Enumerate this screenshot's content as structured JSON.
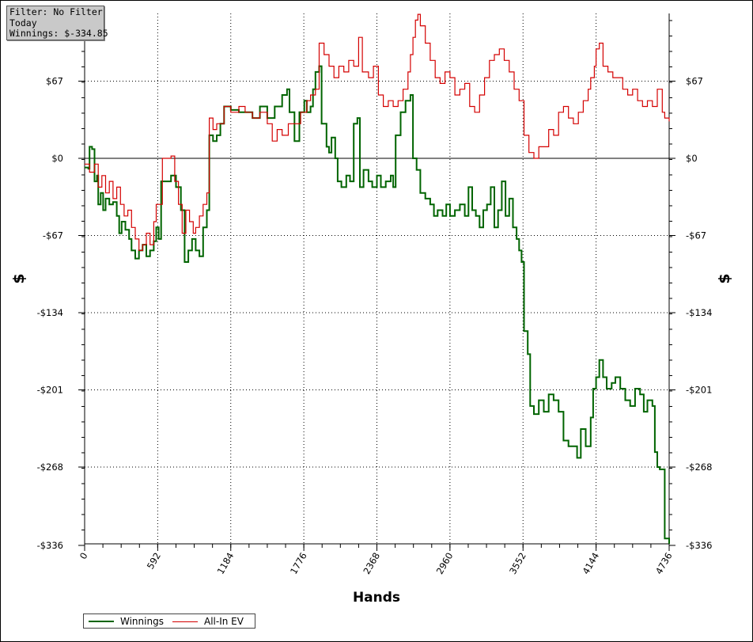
{
  "info": {
    "filter": "Filter: No Filter",
    "period": "Today",
    "winnings": "Winnings: $-334.85"
  },
  "colors": {
    "winnings": "#006400",
    "allin_ev": "#d40000",
    "grid": "#000000"
  },
  "chart_data": {
    "type": "line",
    "xlabel": "Hands",
    "ylabel": "$",
    "xlim": [
      0,
      4736
    ],
    "ylim": [
      -336,
      126
    ],
    "x_ticks": [
      0,
      592,
      1184,
      1776,
      2368,
      2960,
      3552,
      4144,
      4736
    ],
    "x_tick_labels": [
      "0",
      "592",
      "1184",
      "1776",
      "2368",
      "2960",
      "3552",
      "4144",
      "4736"
    ],
    "y_ticks": [
      67,
      0,
      -67,
      -134,
      -201,
      -268,
      -336
    ],
    "y_tick_labels": [
      "$67",
      "$0",
      "-$67",
      "-$134",
      "-$201",
      "-$268",
      "-$336"
    ],
    "grid": true,
    "legend_position": "bottom-left",
    "series": [
      {
        "name": "Winnings",
        "color": "#006400",
        "points": [
          [
            0,
            -8
          ],
          [
            30,
            -9
          ],
          [
            40,
            10
          ],
          [
            60,
            8
          ],
          [
            80,
            -20
          ],
          [
            100,
            -15
          ],
          [
            110,
            -40
          ],
          [
            130,
            -30
          ],
          [
            150,
            -45
          ],
          [
            170,
            -35
          ],
          [
            200,
            -40
          ],
          [
            230,
            -38
          ],
          [
            260,
            -50
          ],
          [
            280,
            -65
          ],
          [
            300,
            -55
          ],
          [
            330,
            -62
          ],
          [
            360,
            -70
          ],
          [
            380,
            -80
          ],
          [
            410,
            -87
          ],
          [
            440,
            -80
          ],
          [
            470,
            -75
          ],
          [
            500,
            -85
          ],
          [
            530,
            -80
          ],
          [
            560,
            -72
          ],
          [
            580,
            -60
          ],
          [
            600,
            -70
          ],
          [
            620,
            -20
          ],
          [
            660,
            -20
          ],
          [
            700,
            -15
          ],
          [
            740,
            -25
          ],
          [
            780,
            -45
          ],
          [
            810,
            -90
          ],
          [
            840,
            -80
          ],
          [
            870,
            -70
          ],
          [
            900,
            -80
          ],
          [
            930,
            -85
          ],
          [
            960,
            -60
          ],
          [
            990,
            -45
          ],
          [
            1010,
            20
          ],
          [
            1040,
            15
          ],
          [
            1070,
            20
          ],
          [
            1100,
            30
          ],
          [
            1130,
            45
          ],
          [
            1184,
            42
          ],
          [
            1250,
            40
          ],
          [
            1300,
            40
          ],
          [
            1360,
            35
          ],
          [
            1420,
            45
          ],
          [
            1480,
            35
          ],
          [
            1540,
            45
          ],
          [
            1600,
            55
          ],
          [
            1640,
            60
          ],
          [
            1660,
            40
          ],
          [
            1700,
            15
          ],
          [
            1740,
            40
          ],
          [
            1780,
            50
          ],
          [
            1800,
            40
          ],
          [
            1830,
            45
          ],
          [
            1850,
            60
          ],
          [
            1870,
            75
          ],
          [
            1900,
            80
          ],
          [
            1920,
            30
          ],
          [
            1940,
            30
          ],
          [
            1960,
            10
          ],
          [
            1980,
            5
          ],
          [
            2000,
            18
          ],
          [
            2030,
            0
          ],
          [
            2050,
            -20
          ],
          [
            2080,
            -25
          ],
          [
            2120,
            -15
          ],
          [
            2150,
            -20
          ],
          [
            2180,
            30
          ],
          [
            2210,
            35
          ],
          [
            2230,
            -25
          ],
          [
            2260,
            -10
          ],
          [
            2300,
            -20
          ],
          [
            2330,
            -25
          ],
          [
            2368,
            -15
          ],
          [
            2400,
            -25
          ],
          [
            2440,
            -20
          ],
          [
            2480,
            -15
          ],
          [
            2500,
            -25
          ],
          [
            2520,
            20
          ],
          [
            2560,
            40
          ],
          [
            2600,
            50
          ],
          [
            2640,
            55
          ],
          [
            2660,
            0
          ],
          [
            2690,
            -10
          ],
          [
            2720,
            -30
          ],
          [
            2760,
            -35
          ],
          [
            2800,
            -40
          ],
          [
            2830,
            -50
          ],
          [
            2860,
            -45
          ],
          [
            2900,
            -50
          ],
          [
            2930,
            -40
          ],
          [
            2960,
            -50
          ],
          [
            3000,
            -45
          ],
          [
            3040,
            -40
          ],
          [
            3080,
            -50
          ],
          [
            3110,
            -25
          ],
          [
            3140,
            -45
          ],
          [
            3170,
            -50
          ],
          [
            3200,
            -60
          ],
          [
            3230,
            -45
          ],
          [
            3260,
            -40
          ],
          [
            3290,
            -25
          ],
          [
            3320,
            -60
          ],
          [
            3350,
            -45
          ],
          [
            3380,
            -20
          ],
          [
            3410,
            -50
          ],
          [
            3440,
            -35
          ],
          [
            3470,
            -60
          ],
          [
            3500,
            -70
          ],
          [
            3520,
            -80
          ],
          [
            3540,
            -90
          ],
          [
            3560,
            -150
          ],
          [
            3590,
            -170
          ],
          [
            3610,
            -215
          ],
          [
            3640,
            -222
          ],
          [
            3680,
            -210
          ],
          [
            3720,
            -220
          ],
          [
            3760,
            -205
          ],
          [
            3800,
            -210
          ],
          [
            3840,
            -220
          ],
          [
            3880,
            -245
          ],
          [
            3920,
            -250
          ],
          [
            3960,
            -250
          ],
          [
            3990,
            -260
          ],
          [
            4020,
            -235
          ],
          [
            4060,
            -250
          ],
          [
            4100,
            -225
          ],
          [
            4120,
            -200
          ],
          [
            4144,
            -190
          ],
          [
            4170,
            -175
          ],
          [
            4200,
            -190
          ],
          [
            4230,
            -200
          ],
          [
            4270,
            -195
          ],
          [
            4300,
            -190
          ],
          [
            4340,
            -200
          ],
          [
            4380,
            -210
          ],
          [
            4420,
            -215
          ],
          [
            4460,
            -200
          ],
          [
            4500,
            -205
          ],
          [
            4530,
            -220
          ],
          [
            4560,
            -210
          ],
          [
            4600,
            -215
          ],
          [
            4620,
            -255
          ],
          [
            4640,
            -268
          ],
          [
            4660,
            -270
          ],
          [
            4680,
            -270
          ],
          [
            4700,
            -330
          ],
          [
            4736,
            -336
          ]
        ]
      },
      {
        "name": "All-In EV",
        "color": "#d40000",
        "points": [
          [
            0,
            -5
          ],
          [
            40,
            -12
          ],
          [
            80,
            -5
          ],
          [
            110,
            -25
          ],
          [
            140,
            -15
          ],
          [
            170,
            -30
          ],
          [
            200,
            -20
          ],
          [
            230,
            -35
          ],
          [
            260,
            -25
          ],
          [
            290,
            -40
          ],
          [
            320,
            -50
          ],
          [
            350,
            -45
          ],
          [
            380,
            -60
          ],
          [
            410,
            -70
          ],
          [
            440,
            -80
          ],
          [
            470,
            -75
          ],
          [
            500,
            -65
          ],
          [
            530,
            -75
          ],
          [
            560,
            -55
          ],
          [
            580,
            -40
          ],
          [
            610,
            -40
          ],
          [
            630,
            0
          ],
          [
            660,
            0
          ],
          [
            700,
            2
          ],
          [
            730,
            -20
          ],
          [
            760,
            -40
          ],
          [
            790,
            -65
          ],
          [
            820,
            -45
          ],
          [
            850,
            -55
          ],
          [
            880,
            -65
          ],
          [
            900,
            -60
          ],
          [
            930,
            -50
          ],
          [
            960,
            -40
          ],
          [
            990,
            -30
          ],
          [
            1010,
            35
          ],
          [
            1040,
            25
          ],
          [
            1070,
            30
          ],
          [
            1100,
            30
          ],
          [
            1130,
            45
          ],
          [
            1184,
            40
          ],
          [
            1250,
            45
          ],
          [
            1300,
            40
          ],
          [
            1360,
            35
          ],
          [
            1420,
            40
          ],
          [
            1480,
            30
          ],
          [
            1520,
            15
          ],
          [
            1560,
            25
          ],
          [
            1600,
            20
          ],
          [
            1650,
            30
          ],
          [
            1700,
            30
          ],
          [
            1750,
            40
          ],
          [
            1800,
            50
          ],
          [
            1830,
            55
          ],
          [
            1870,
            60
          ],
          [
            1900,
            100
          ],
          [
            1940,
            90
          ],
          [
            1980,
            80
          ],
          [
            2020,
            70
          ],
          [
            2060,
            80
          ],
          [
            2100,
            75
          ],
          [
            2140,
            85
          ],
          [
            2180,
            80
          ],
          [
            2220,
            105
          ],
          [
            2250,
            75
          ],
          [
            2300,
            70
          ],
          [
            2340,
            80
          ],
          [
            2380,
            55
          ],
          [
            2420,
            45
          ],
          [
            2460,
            50
          ],
          [
            2500,
            45
          ],
          [
            2540,
            50
          ],
          [
            2580,
            60
          ],
          [
            2620,
            75
          ],
          [
            2640,
            90
          ],
          [
            2660,
            105
          ],
          [
            2680,
            120
          ],
          [
            2700,
            125
          ],
          [
            2720,
            115
          ],
          [
            2760,
            100
          ],
          [
            2800,
            85
          ],
          [
            2840,
            70
          ],
          [
            2880,
            65
          ],
          [
            2920,
            75
          ],
          [
            2960,
            70
          ],
          [
            3000,
            55
          ],
          [
            3040,
            60
          ],
          [
            3080,
            65
          ],
          [
            3120,
            45
          ],
          [
            3160,
            40
          ],
          [
            3200,
            55
          ],
          [
            3240,
            70
          ],
          [
            3280,
            85
          ],
          [
            3320,
            90
          ],
          [
            3360,
            95
          ],
          [
            3400,
            85
          ],
          [
            3440,
            75
          ],
          [
            3480,
            60
          ],
          [
            3520,
            50
          ],
          [
            3560,
            20
          ],
          [
            3600,
            5
          ],
          [
            3640,
            0
          ],
          [
            3680,
            10
          ],
          [
            3720,
            10
          ],
          [
            3760,
            25
          ],
          [
            3800,
            20
          ],
          [
            3840,
            40
          ],
          [
            3880,
            45
          ],
          [
            3920,
            35
          ],
          [
            3960,
            30
          ],
          [
            4000,
            40
          ],
          [
            4040,
            50
          ],
          [
            4080,
            60
          ],
          [
            4100,
            70
          ],
          [
            4130,
            80
          ],
          [
            4144,
            95
          ],
          [
            4170,
            100
          ],
          [
            4200,
            80
          ],
          [
            4240,
            75
          ],
          [
            4280,
            70
          ],
          [
            4320,
            70
          ],
          [
            4360,
            60
          ],
          [
            4400,
            55
          ],
          [
            4440,
            60
          ],
          [
            4480,
            50
          ],
          [
            4520,
            45
          ],
          [
            4560,
            50
          ],
          [
            4600,
            45
          ],
          [
            4640,
            60
          ],
          [
            4680,
            40
          ],
          [
            4700,
            35
          ],
          [
            4736,
            32
          ]
        ]
      }
    ]
  }
}
